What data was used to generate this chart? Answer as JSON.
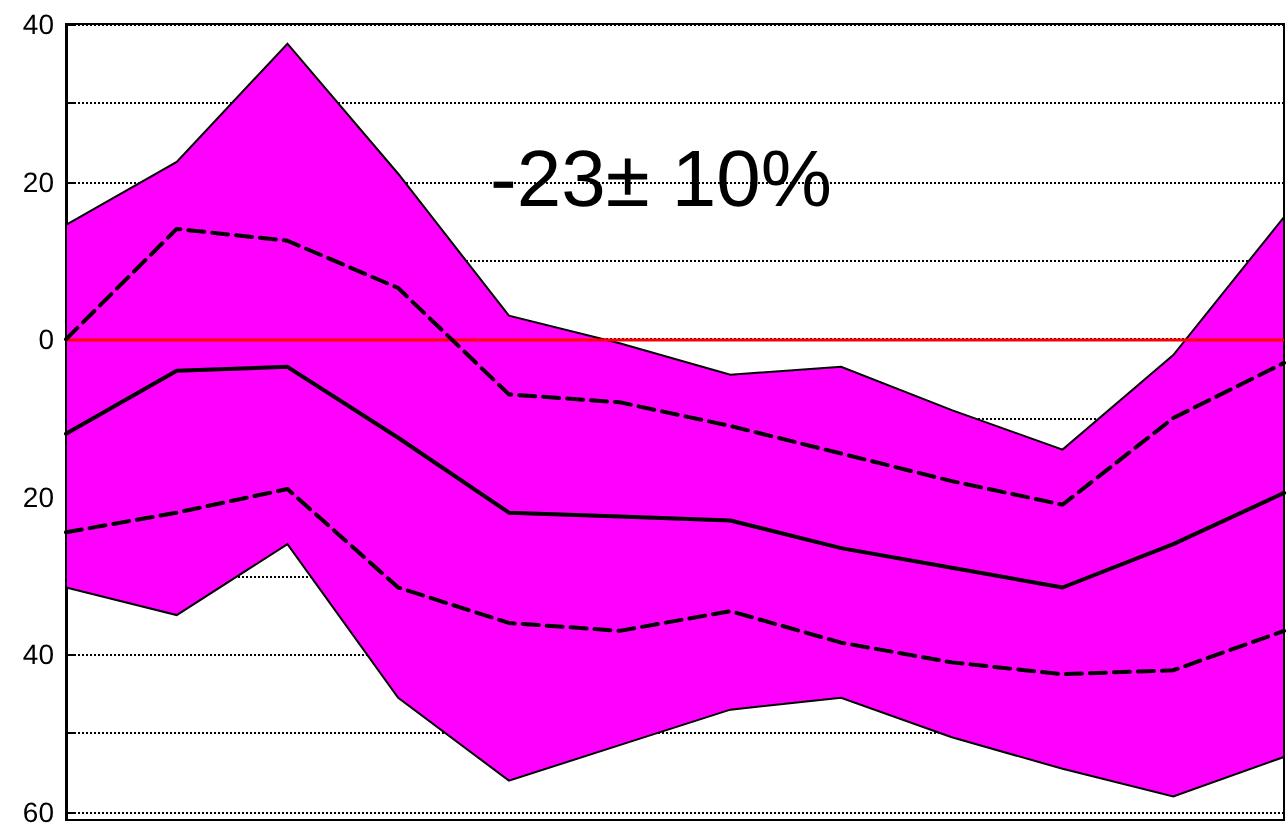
{
  "chart_data": {
    "type": "line",
    "categories": [
      null,
      null,
      null,
      null,
      null,
      null,
      null,
      null,
      null,
      null,
      null,
      null
    ],
    "series": [
      {
        "color": "#000000",
        "line_style": "solid",
        "values": [
          -12,
          -4,
          -3.5,
          -12.5,
          -22,
          -22.5,
          -23,
          -26.5,
          -29,
          -31.5,
          -26,
          -19.5
        ],
        "lower": [
          -31.5,
          -35,
          -26,
          -45.5,
          -56,
          -51.5,
          -47,
          -45.5,
          -50.5,
          -54.5,
          -58,
          -53
        ],
        "upper": [
          14.5,
          22.5,
          37.5,
          21,
          3,
          -0.5,
          -4.5,
          -3.5,
          -9,
          -14,
          -2,
          15.5
        ]
      },
      {
        "color": "#000000",
        "line_style": "dashed",
        "values": [
          0,
          14,
          12.5,
          6.5,
          -7,
          -8,
          -11,
          -14.5,
          -18,
          -21,
          -10,
          -3
        ]
      },
      {
        "color": "#000000",
        "line_style": "dashed",
        "values": [
          -24.5,
          -22,
          -19,
          -31.5,
          -36,
          -37,
          -34.5,
          -38.5,
          -41,
          -42.5,
          -42,
          -37
        ]
      }
    ],
    "ylim": [
      -61,
      40
    ],
    "yticks": [
      {
        "value": -60,
        "label": "60"
      },
      {
        "value": -50,
        "label": null
      },
      {
        "value": -40,
        "label": "40"
      },
      {
        "value": -30,
        "label": null
      },
      {
        "value": -20,
        "label": "20"
      },
      {
        "value": -10,
        "label": null
      },
      0,
      {
        "value": 10,
        "label": null
      },
      20,
      {
        "value": 30,
        "label": null
      },
      40
    ],
    "grid": "y",
    "tick_labels": "y",
    "marker": "none",
    "ref_lines": [
      {
        "axis": "y",
        "value": 0,
        "color": "#ff0000"
      }
    ],
    "annotations": [
      "-23± 10%"
    ]
  }
}
